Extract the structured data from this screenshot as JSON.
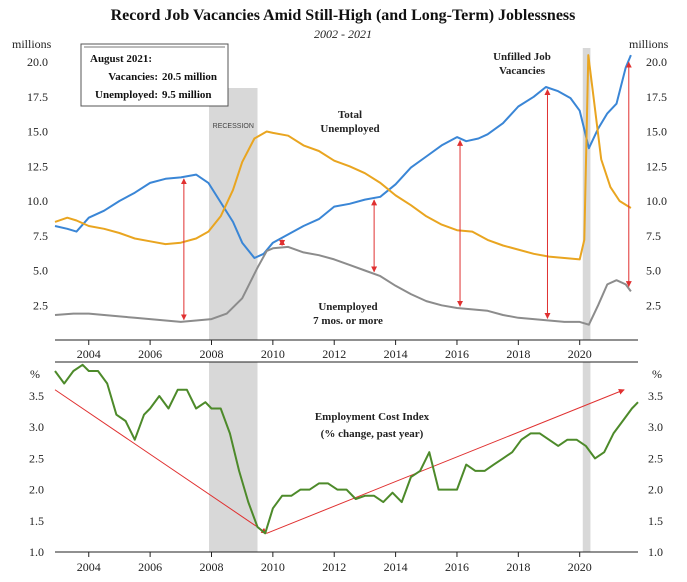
{
  "title": "Record Job Vacancies Amid Still-High (and Long-Term) Joblessness",
  "subtitle": "2002 - 2021",
  "colors": {
    "vacancies": "#3a86d6",
    "unemployed": "#e9a520",
    "long_term": "#8c8c8c",
    "eci": "#4d8a2a",
    "arrows": "#e03030",
    "recession": "#d8d8d8"
  },
  "chart_data": [
    {
      "type": "line",
      "units_left": "millions",
      "units_right": "millions",
      "xlim": [
        2002.9,
        2021.9
      ],
      "ylim": [
        0,
        21
      ],
      "yticks": [
        "20.0",
        "17.5",
        "15.0",
        "12.5",
        "10.0",
        "7.5",
        "5.0",
        "2.5"
      ],
      "ytick_values": [
        20,
        17.5,
        15,
        12.5,
        10,
        7.5,
        5,
        2.5
      ],
      "xticks": [
        "2004",
        "2006",
        "2008",
        "2010",
        "2012",
        "2014",
        "2016",
        "2018",
        "2020"
      ],
      "xtick_values": [
        2004,
        2006,
        2008,
        2010,
        2012,
        2014,
        2016,
        2018,
        2020
      ],
      "recessions": [
        {
          "label": "RECESSION",
          "start": 2007.92,
          "end": 2009.5
        },
        {
          "label": "",
          "start": 2020.1,
          "end": 2020.35
        }
      ],
      "info_box": {
        "heading": "August 2021:",
        "rows": [
          {
            "label": "Vacancies:",
            "value": "20.5 million"
          },
          {
            "label": "Unemployed:",
            "value": "9.5 million"
          }
        ]
      },
      "annotations": [
        "Unfilled Job Vacancies",
        "Total Unemployed",
        "Unemployed 7 mos. or more"
      ],
      "series": [
        {
          "name": "Unfilled Job Vacancies",
          "x": [
            2002.9,
            2003.3,
            2003.6,
            2004.0,
            2004.5,
            2005.0,
            2005.5,
            2006.0,
            2006.5,
            2007.0,
            2007.5,
            2007.9,
            2008.3,
            2008.7,
            2009.0,
            2009.4,
            2009.7,
            2010.0,
            2010.5,
            2011.0,
            2011.5,
            2012.0,
            2012.5,
            2013.0,
            2013.5,
            2014.0,
            2014.5,
            2015.0,
            2015.5,
            2016.0,
            2016.3,
            2016.7,
            2017.0,
            2017.5,
            2018.0,
            2018.5,
            2018.9,
            2019.3,
            2019.7,
            2020.0,
            2020.3,
            2020.6,
            2020.9,
            2021.2,
            2021.5,
            2021.67
          ],
          "values": [
            8.2,
            8.0,
            7.8,
            8.8,
            9.3,
            10.0,
            10.6,
            11.3,
            11.6,
            11.7,
            11.9,
            11.3,
            9.9,
            8.5,
            7.0,
            5.9,
            6.2,
            7.0,
            7.6,
            8.2,
            8.7,
            9.6,
            9.8,
            10.1,
            10.3,
            11.2,
            12.4,
            13.2,
            14.0,
            14.6,
            14.3,
            14.5,
            14.8,
            15.6,
            16.8,
            17.5,
            18.2,
            17.9,
            17.4,
            16.5,
            13.8,
            15.2,
            16.3,
            17.0,
            19.6,
            20.5
          ]
        },
        {
          "name": "Total Unemployed",
          "x": [
            2002.9,
            2003.3,
            2003.6,
            2004.0,
            2004.5,
            2005.0,
            2005.5,
            2006.0,
            2006.5,
            2007.0,
            2007.5,
            2007.9,
            2008.3,
            2008.7,
            2009.0,
            2009.4,
            2009.8,
            2010.0,
            2010.5,
            2011.0,
            2011.5,
            2012.0,
            2012.5,
            2013.0,
            2013.5,
            2014.0,
            2014.5,
            2015.0,
            2015.5,
            2016.0,
            2016.5,
            2017.0,
            2017.5,
            2018.0,
            2018.5,
            2019.0,
            2019.5,
            2020.0,
            2020.15,
            2020.28,
            2020.45,
            2020.7,
            2021.0,
            2021.3,
            2021.67
          ],
          "values": [
            8.5,
            8.8,
            8.6,
            8.2,
            8.0,
            7.7,
            7.3,
            7.1,
            6.9,
            7.0,
            7.3,
            7.8,
            8.9,
            10.8,
            12.8,
            14.5,
            15.0,
            14.9,
            14.7,
            14.0,
            13.6,
            12.9,
            12.5,
            12.0,
            11.3,
            10.4,
            9.7,
            8.9,
            8.3,
            7.9,
            7.8,
            7.2,
            6.8,
            6.5,
            6.2,
            6.0,
            5.9,
            5.8,
            7.2,
            20.5,
            17.5,
            13.0,
            11.0,
            10.0,
            9.5
          ]
        },
        {
          "name": "Unemployed 7 mos. or more",
          "x": [
            2002.9,
            2003.5,
            2004.0,
            2004.5,
            2005.0,
            2005.5,
            2006.0,
            2006.5,
            2007.0,
            2007.5,
            2008.0,
            2008.5,
            2009.0,
            2009.5,
            2009.8,
            2010.0,
            2010.5,
            2011.0,
            2011.5,
            2012.0,
            2012.5,
            2013.0,
            2013.5,
            2014.0,
            2014.5,
            2015.0,
            2015.5,
            2016.0,
            2016.5,
            2017.0,
            2017.5,
            2018.0,
            2018.5,
            2019.0,
            2019.5,
            2020.0,
            2020.3,
            2020.6,
            2020.9,
            2021.2,
            2021.5,
            2021.67
          ],
          "values": [
            1.8,
            1.9,
            1.9,
            1.8,
            1.7,
            1.6,
            1.5,
            1.4,
            1.3,
            1.4,
            1.5,
            1.9,
            3.0,
            5.2,
            6.4,
            6.6,
            6.7,
            6.3,
            6.1,
            5.8,
            5.4,
            5.0,
            4.6,
            3.9,
            3.3,
            2.8,
            2.5,
            2.3,
            2.2,
            2.1,
            1.8,
            1.6,
            1.5,
            1.4,
            1.3,
            1.3,
            1.1,
            2.5,
            4.0,
            4.3,
            4.0,
            3.5
          ]
        }
      ],
      "gap_arrows_x": [
        2007.1,
        2010.3,
        2013.3,
        2016.1,
        2018.95,
        2021.6
      ]
    },
    {
      "type": "line",
      "units_left": "%",
      "units_right": "%",
      "xlim": [
        2002.9,
        2021.9
      ],
      "ylim": [
        1.0,
        4.0
      ],
      "yticks": [
        "3.5",
        "3.0",
        "2.5",
        "2.0",
        "1.5",
        "1.0"
      ],
      "ytick_values": [
        3.5,
        3.0,
        2.5,
        2.0,
        1.5,
        1.0
      ],
      "xticks": [
        "2004",
        "2006",
        "2008",
        "2010",
        "2012",
        "2014",
        "2016",
        "2018",
        "2020"
      ],
      "xtick_values": [
        2004,
        2006,
        2008,
        2010,
        2012,
        2014,
        2016,
        2018,
        2020
      ],
      "annotations": [
        "Employment Cost Index",
        "(% change, past year)"
      ],
      "series": [
        {
          "name": "Employment Cost Index",
          "x": [
            2002.9,
            2003.2,
            2003.5,
            2003.8,
            2004.0,
            2004.3,
            2004.6,
            2004.9,
            2005.2,
            2005.5,
            2005.8,
            2006.0,
            2006.3,
            2006.6,
            2006.9,
            2007.2,
            2007.5,
            2007.8,
            2008.0,
            2008.3,
            2008.6,
            2008.9,
            2009.2,
            2009.5,
            2009.75,
            2010.0,
            2010.3,
            2010.6,
            2010.9,
            2011.2,
            2011.5,
            2011.8,
            2012.1,
            2012.4,
            2012.7,
            2013.0,
            2013.3,
            2013.6,
            2013.9,
            2014.2,
            2014.5,
            2014.8,
            2015.1,
            2015.4,
            2015.7,
            2016.0,
            2016.3,
            2016.6,
            2016.9,
            2017.2,
            2017.5,
            2017.8,
            2018.1,
            2018.4,
            2018.7,
            2019.0,
            2019.3,
            2019.6,
            2019.9,
            2020.2,
            2020.5,
            2020.8,
            2021.1,
            2021.4,
            2021.7,
            2021.9
          ],
          "values": [
            3.9,
            3.7,
            3.9,
            4.0,
            3.9,
            3.9,
            3.7,
            3.2,
            3.1,
            2.8,
            3.2,
            3.3,
            3.5,
            3.3,
            3.6,
            3.6,
            3.3,
            3.4,
            3.3,
            3.3,
            2.9,
            2.3,
            1.8,
            1.4,
            1.3,
            1.7,
            1.9,
            1.9,
            2.0,
            2.0,
            2.1,
            2.1,
            2.0,
            2.0,
            1.85,
            1.9,
            1.9,
            1.8,
            1.95,
            1.8,
            2.2,
            2.3,
            2.6,
            2.0,
            2.0,
            2.0,
            2.4,
            2.3,
            2.3,
            2.4,
            2.5,
            2.6,
            2.8,
            2.9,
            2.9,
            2.8,
            2.7,
            2.8,
            2.8,
            2.7,
            2.5,
            2.6,
            2.9,
            3.1,
            3.3,
            3.4
          ]
        }
      ],
      "trend_arrows": [
        {
          "from": [
            2002.9,
            3.6
          ],
          "to": [
            2009.8,
            1.3
          ]
        },
        {
          "from": [
            2009.8,
            1.3
          ],
          "to": [
            2021.45,
            3.6
          ]
        }
      ]
    }
  ]
}
